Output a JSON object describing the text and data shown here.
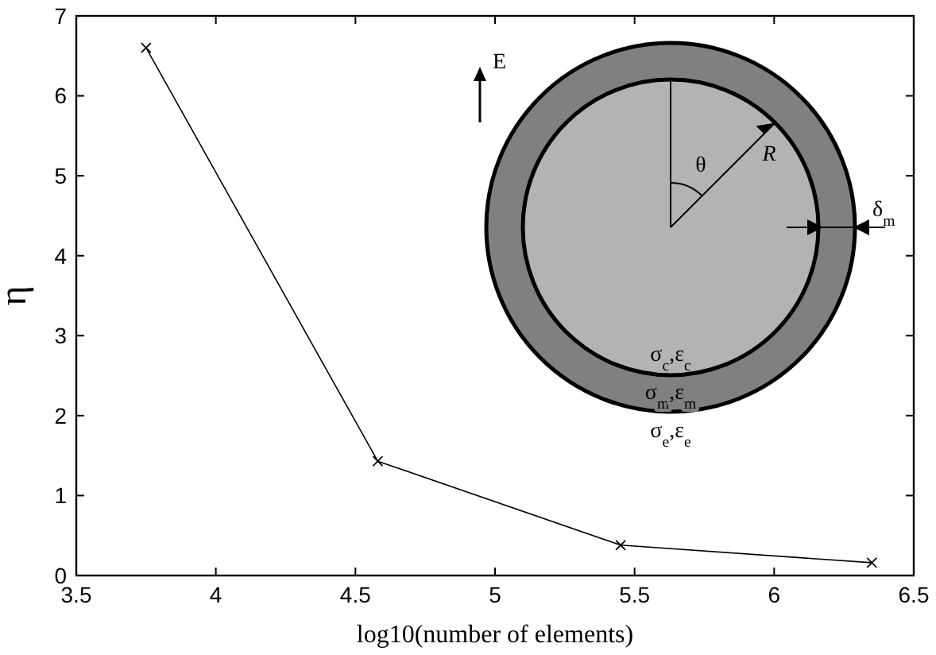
{
  "chart_data": {
    "type": "line",
    "xlabel": "log10(number of elements)",
    "ylabel": "η",
    "x": [
      3.75,
      4.58,
      5.45,
      6.35
    ],
    "series": [
      {
        "color": "#000000",
        "values": [
          6.6,
          1.43,
          0.38,
          0.16
        ]
      }
    ],
    "marker": "cross",
    "line_style": "solid",
    "grid": false,
    "xlim": [
      3.5,
      6.5
    ],
    "xticks": [
      3.5,
      4,
      4.5,
      5,
      5.5,
      6,
      6.5
    ],
    "ylim": [
      0,
      7
    ],
    "yticks": [
      0,
      1,
      2,
      3,
      4,
      5,
      6,
      7
    ],
    "annotations": [
      "E",
      "θ",
      "R",
      "δ$_{m}$",
      "σ$_{c}$,ε$_{c}$",
      "σ$_{m}$,ε$_{m}$",
      "σ$_{e}$,ε$_{e}$"
    ]
  }
}
